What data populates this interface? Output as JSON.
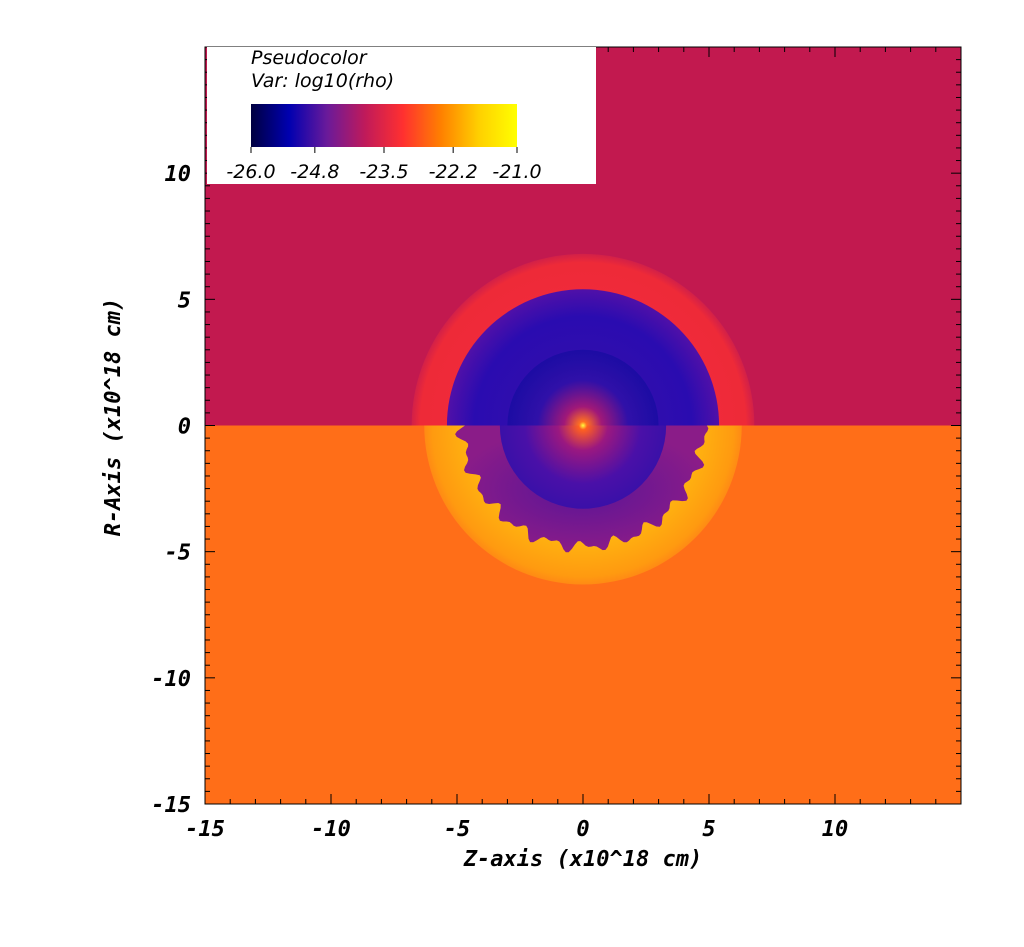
{
  "chart_data": {
    "type": "heatmap",
    "title": "Pseudocolor",
    "variable_label": "Var: log10(rho)",
    "xlabel": "Z-axis (x10^18 cm)",
    "ylabel": "R-Axis (x10^18 cm)",
    "xlim": [
      -15,
      15
    ],
    "ylim": [
      -15,
      15
    ],
    "x_ticks": [
      "-15",
      "-10",
      "-5",
      "0",
      "5",
      "10"
    ],
    "y_ticks": [
      "10",
      "5",
      "0",
      "-5",
      "-10",
      "-15"
    ],
    "colorbar": {
      "range": [
        -26.0,
        -21.0
      ],
      "ticks": [
        "-26.0",
        "-24.8",
        "-23.5",
        "-22.2",
        "-21.0"
      ],
      "colormap": [
        "#000040",
        "#0000b0",
        "#6a1a9a",
        "#c01a5a",
        "#ff3030",
        "#ff8000",
        "#ffd000",
        "#ffff00"
      ]
    },
    "regions": {
      "upper_background": "#c2194f",
      "lower_background": "#ff6e18",
      "upper_shell_outer_radius": 6.8,
      "upper_shell_color": "#ee2a38",
      "upper_bubble_radius": 5.4,
      "upper_bubble_color": "#4a10ac",
      "upper_core_radius": 3.0,
      "upper_core_color": "#1c0ca4",
      "lower_shell_outer_radius": 6.3,
      "lower_shell_color": "#ff9a10",
      "lower_bubble_radius": 4.8,
      "lower_bubble_color": "#7a1a90",
      "lower_core_radius": 3.3,
      "lower_core_color": "#3a10a8"
    }
  }
}
